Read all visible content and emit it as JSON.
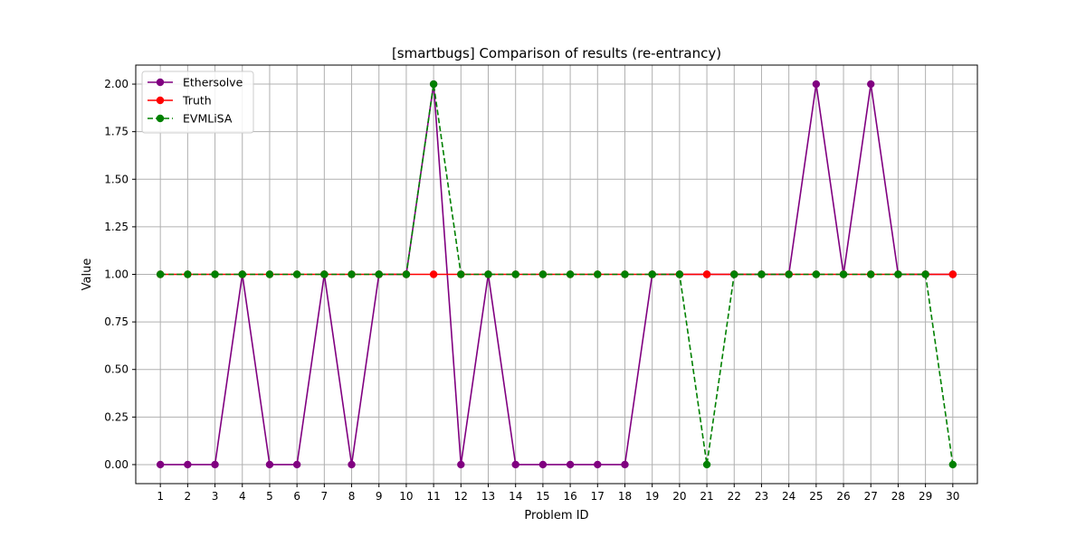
{
  "chart_data": {
    "type": "line",
    "title": "[smartbugs] Comparison of results (re-entrancy)",
    "xlabel": "Problem ID",
    "ylabel": "Value",
    "x": [
      1,
      2,
      3,
      4,
      5,
      6,
      7,
      8,
      9,
      10,
      11,
      12,
      13,
      14,
      15,
      16,
      17,
      18,
      19,
      20,
      21,
      22,
      23,
      24,
      25,
      26,
      27,
      28,
      29,
      30
    ],
    "x_tick_labels": [
      "1",
      "2",
      "3",
      "4",
      "5",
      "6",
      "7",
      "8",
      "9",
      "10",
      "11",
      "12",
      "13",
      "14",
      "15",
      "16",
      "17",
      "18",
      "19",
      "20",
      "21",
      "22",
      "23",
      "24",
      "25",
      "26",
      "27",
      "28",
      "29",
      "30"
    ],
    "xlim": [
      0.1,
      30.9
    ],
    "ylim": [
      -0.1,
      2.1
    ],
    "y_ticks": [
      0.0,
      0.25,
      0.5,
      0.75,
      1.0,
      1.25,
      1.5,
      1.75,
      2.0
    ],
    "y_tick_labels": [
      "0.00",
      "0.25",
      "0.50",
      "0.75",
      "1.00",
      "1.25",
      "1.50",
      "1.75",
      "2.00"
    ],
    "grid": true,
    "legend_position": "top-left",
    "series": [
      {
        "name": "Ethersolve",
        "color": "#800080",
        "linestyle": "solid",
        "marker": "circle",
        "values": [
          0,
          0,
          0,
          1,
          0,
          0,
          1,
          0,
          1,
          1,
          2,
          0,
          1,
          0,
          0,
          0,
          0,
          0,
          1,
          1,
          1,
          1,
          1,
          1,
          2,
          1,
          2,
          1,
          1,
          1
        ]
      },
      {
        "name": "Truth",
        "color": "#ff0000",
        "linestyle": "solid",
        "marker": "circle",
        "values": [
          1,
          1,
          1,
          1,
          1,
          1,
          1,
          1,
          1,
          1,
          1,
          1,
          1,
          1,
          1,
          1,
          1,
          1,
          1,
          1,
          1,
          1,
          1,
          1,
          1,
          1,
          1,
          1,
          1,
          1
        ]
      },
      {
        "name": "EVMLiSA",
        "color": "#008000",
        "linestyle": "dashed",
        "marker": "circle",
        "values": [
          1,
          1,
          1,
          1,
          1,
          1,
          1,
          1,
          1,
          1,
          2,
          1,
          1,
          1,
          1,
          1,
          1,
          1,
          1,
          1,
          0,
          1,
          1,
          1,
          1,
          1,
          1,
          1,
          1,
          0
        ]
      }
    ]
  }
}
